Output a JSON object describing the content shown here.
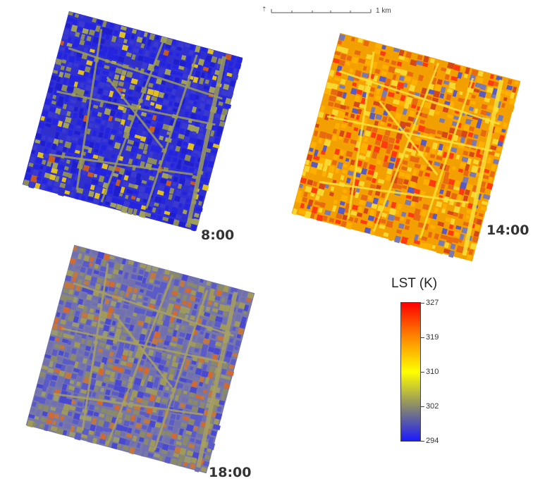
{
  "panels": [
    {
      "id": "p800",
      "time": "8:00",
      "scheme": "morning"
    },
    {
      "id": "p1400",
      "time": "14:00",
      "scheme": "noon"
    },
    {
      "id": "p1800",
      "time": "18:00",
      "scheme": "evening"
    }
  ],
  "scale": {
    "label": "1  km"
  },
  "legend": {
    "title": "LST (K)",
    "ticks": [
      "327",
      "319",
      "310",
      "302",
      "294"
    ],
    "colors": [
      "#ff0000",
      "#ff8800",
      "#ffff00",
      "#8a8a6a",
      "#1a1aff"
    ]
  },
  "colors": {
    "morning_bg": "#2f2fd6",
    "noon_bg": "#f5a000",
    "evening_bg": "#7878a8",
    "road_morning": "#9a9a5a",
    "road_noon": "#f8e23a",
    "road_evening": "#a8a060"
  }
}
